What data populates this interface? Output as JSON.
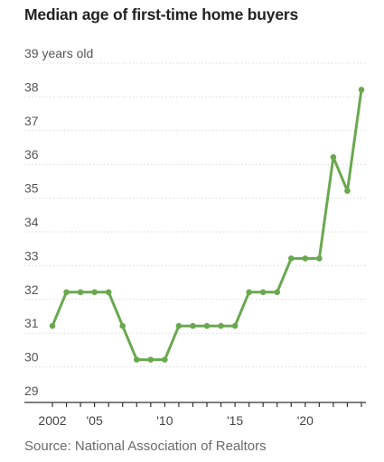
{
  "chart_data": {
    "type": "line",
    "title": "Median age of first-time home buyers",
    "source": "Source: National Association of Realtors",
    "ylim": [
      29,
      39
    ],
    "xlim": [
      2001.5,
      2024.5
    ],
    "y_ticks": [
      {
        "value": 39,
        "label": "39 years old"
      },
      {
        "value": 38,
        "label": "38"
      },
      {
        "value": 37,
        "label": "37"
      },
      {
        "value": 36,
        "label": "36"
      },
      {
        "value": 35,
        "label": "35"
      },
      {
        "value": 34,
        "label": "34"
      },
      {
        "value": 33,
        "label": "33"
      },
      {
        "value": 32,
        "label": "32"
      },
      {
        "value": 31,
        "label": "31"
      },
      {
        "value": 30,
        "label": "30"
      },
      {
        "value": 29,
        "label": "29"
      }
    ],
    "x_tick_years": [
      2002,
      2003,
      2004,
      2005,
      2006,
      2007,
      2008,
      2009,
      2010,
      2011,
      2012,
      2013,
      2014,
      2015,
      2016,
      2017,
      2018,
      2019,
      2020,
      2021,
      2022,
      2023,
      2024
    ],
    "x_labels": [
      {
        "year": 2002,
        "label": "2002"
      },
      {
        "year": 2005,
        "label": "'05"
      },
      {
        "year": 2010,
        "label": "'10"
      },
      {
        "year": 2015,
        "label": "'15"
      },
      {
        "year": 2020,
        "label": "'20"
      }
    ],
    "grid": true,
    "line_color": "#6aa84f",
    "series": [
      {
        "x": [
          2002,
          2003,
          2004,
          2005,
          2006,
          2007,
          2008,
          2009,
          2010,
          2011,
          2012,
          2013,
          2014,
          2015,
          2016,
          2017,
          2018,
          2019,
          2020,
          2021,
          2022,
          2023,
          2024
        ],
        "values": [
          31,
          32,
          32,
          32,
          32,
          31,
          30,
          30,
          30,
          31,
          31,
          31,
          31,
          31,
          32,
          32,
          32,
          33,
          33,
          33,
          36,
          35,
          38
        ]
      }
    ]
  }
}
